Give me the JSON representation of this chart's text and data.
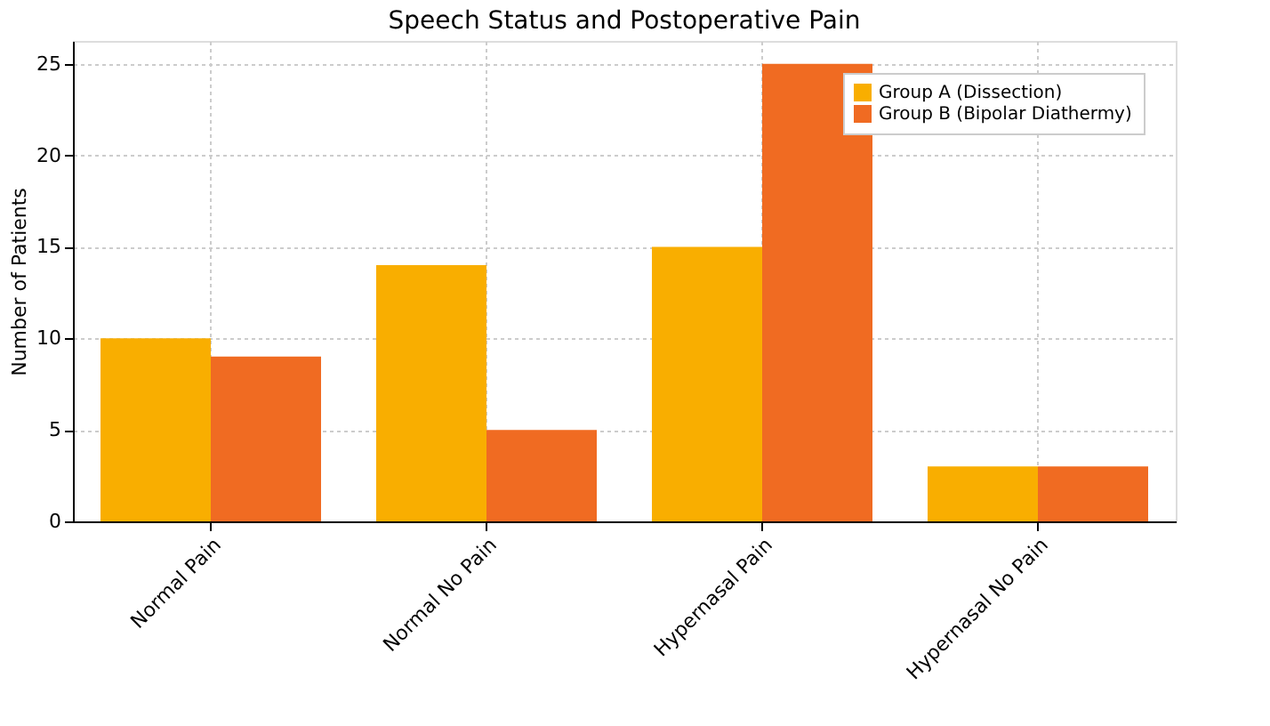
{
  "chart_data": {
    "type": "bar",
    "title": "Speech Status and Postoperative Pain",
    "ylabel": "Number of Patients",
    "categories": [
      "Normal Pain",
      "Normal No Pain",
      "Hypernasal Pain",
      "Hypernasal No Pain"
    ],
    "series": [
      {
        "name": "Group A (Dissection)",
        "color": "#f9ae00",
        "values": [
          10,
          14,
          15,
          3
        ]
      },
      {
        "name": "Group B (Bipolar Diathermy)",
        "color": "#f06b22",
        "values": [
          9,
          5,
          25,
          3
        ]
      }
    ],
    "ylim": [
      0,
      26.25
    ],
    "yticks": [
      0,
      5,
      10,
      15,
      20,
      25
    ],
    "grid": true,
    "legend": "top right"
  }
}
